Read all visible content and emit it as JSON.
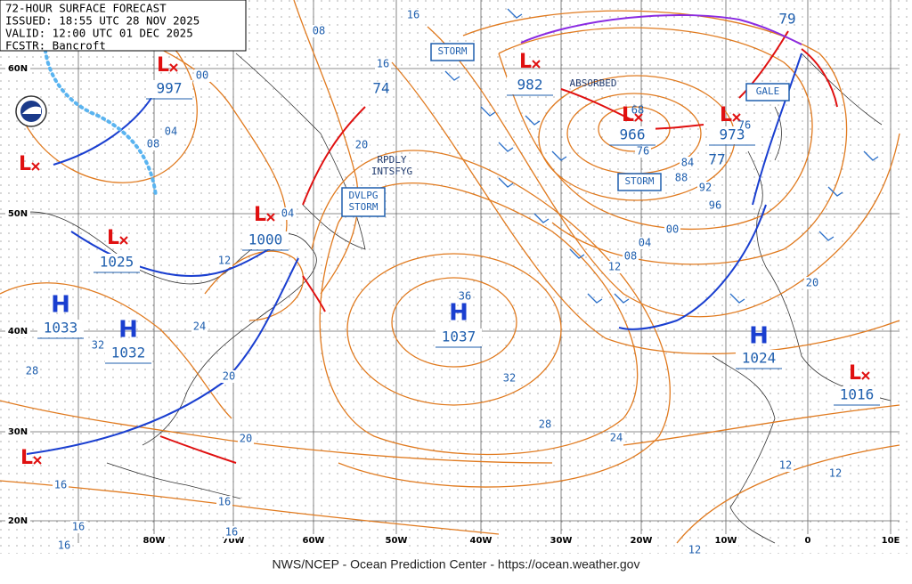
{
  "header": {
    "title": "72-HOUR SURFACE FORECAST",
    "issued": "ISSUED: 18:55 UTC 28 NOV 2025",
    "valid": "VALID:  12:00 UTC 01 DEC 2025",
    "forecaster": "FCSTR: Bancroft"
  },
  "footer": "NWS/NCEP - Ocean Prediction Center - https://ocean.weather.gov",
  "lat_labels": [
    "60N",
    "50N",
    "40N",
    "30N",
    "20N"
  ],
  "lon_labels": [
    "80W",
    "70W",
    "60W",
    "50W",
    "40W",
    "30W",
    "20W",
    "10W",
    "0",
    "10E"
  ],
  "pressure_centers": [
    {
      "kind": "L",
      "value": "997"
    },
    {
      "kind": "L",
      "value": "1000"
    },
    {
      "kind": "L",
      "value": "1025"
    },
    {
      "kind": "H",
      "value": "1033"
    },
    {
      "kind": "H",
      "value": "1032"
    },
    {
      "kind": "H",
      "value": "1037"
    },
    {
      "kind": "L",
      "value": "982"
    },
    {
      "kind": "L",
      "value": "966"
    },
    {
      "kind": "L",
      "value": "973"
    },
    {
      "kind": "H",
      "value": "1024"
    },
    {
      "kind": "L",
      "value": "1016"
    },
    {
      "kind": "L",
      "value": null
    },
    {
      "kind": "L",
      "value": null
    }
  ],
  "center_values": [
    "74",
    "79",
    "77",
    "36",
    "68",
    "76"
  ],
  "boxed_labels": [
    "STORM",
    "STORM",
    "GALE",
    "DVLPG\nSTORM"
  ],
  "annotations": [
    "ABSORBED",
    "RPDLY\nINTSFYG"
  ],
  "isobar_labels": [
    "00",
    "04",
    "08",
    "16",
    "08",
    "16",
    "20",
    "04",
    "12",
    "24",
    "32",
    "28",
    "20",
    "20",
    "16",
    "16",
    "16",
    "16",
    "16",
    "32",
    "28",
    "24",
    "76",
    "84",
    "88",
    "92",
    "96",
    "00",
    "04",
    "08",
    "12",
    "20",
    "12",
    "12",
    "12"
  ]
}
